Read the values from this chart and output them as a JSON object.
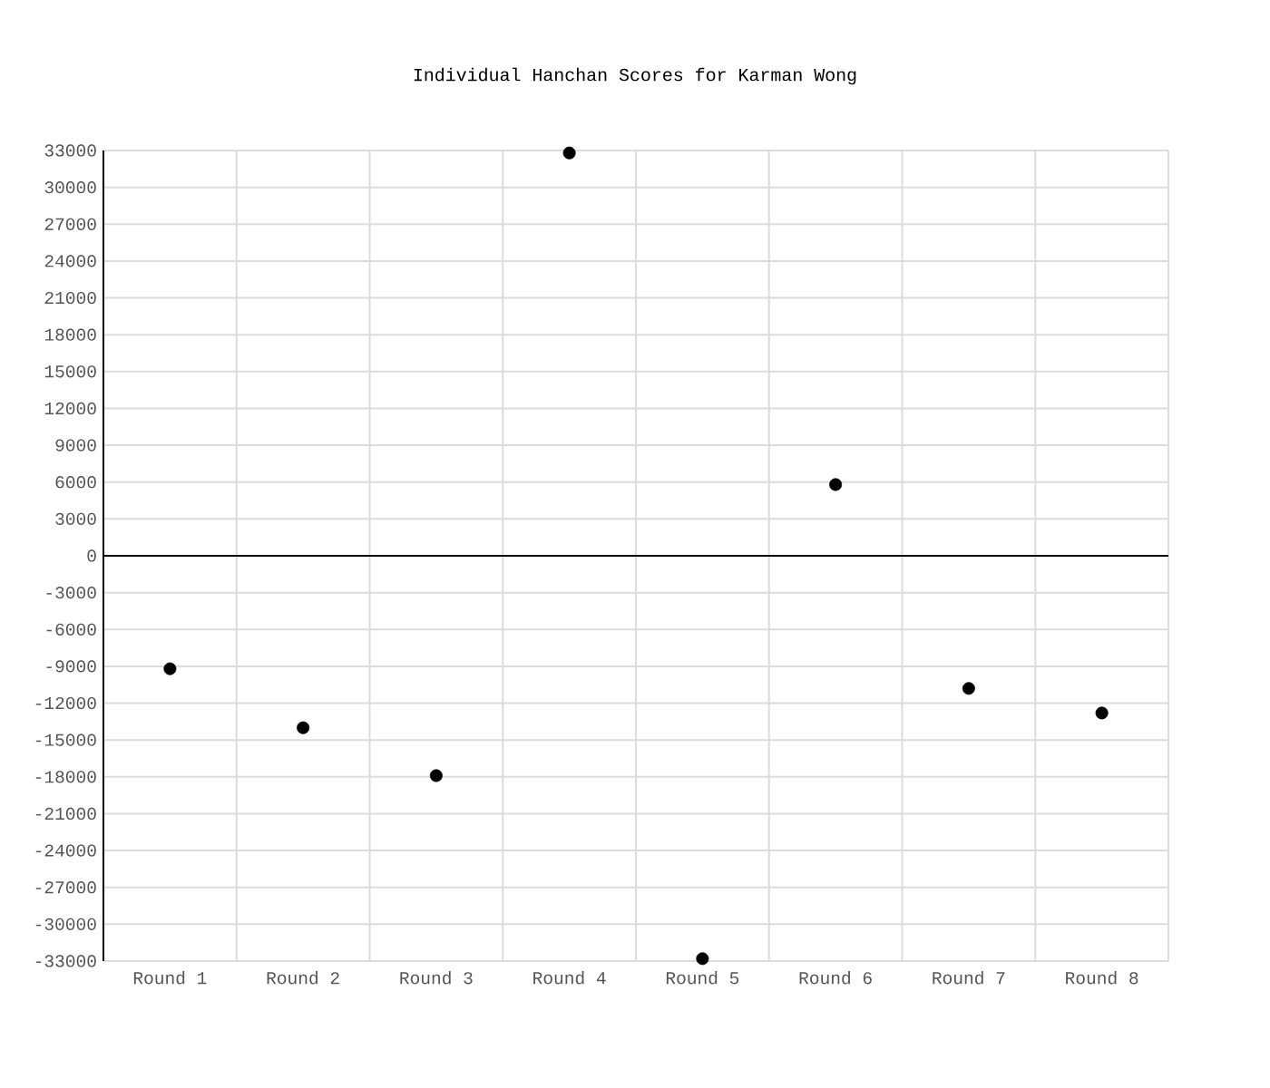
{
  "chart_data": {
    "type": "scatter",
    "title": "Individual Hanchan Scores for Karman Wong",
    "categories": [
      "Round 1",
      "Round 2",
      "Round 3",
      "Round 4",
      "Round 5",
      "Round 6",
      "Round 7",
      "Round 8"
    ],
    "values": [
      -9200,
      -14000,
      -17900,
      32800,
      -32800,
      5800,
      -10800,
      -12800
    ],
    "color": "#000000",
    "ylim": [
      -33000,
      33000
    ],
    "yticks": [
      -33000,
      -30000,
      -27000,
      -24000,
      -21000,
      -18000,
      -15000,
      -12000,
      -9000,
      -6000,
      -3000,
      0,
      3000,
      6000,
      9000,
      12000,
      15000,
      18000,
      21000,
      24000,
      27000,
      30000,
      33000
    ],
    "grid": true,
    "marker": "circle"
  }
}
